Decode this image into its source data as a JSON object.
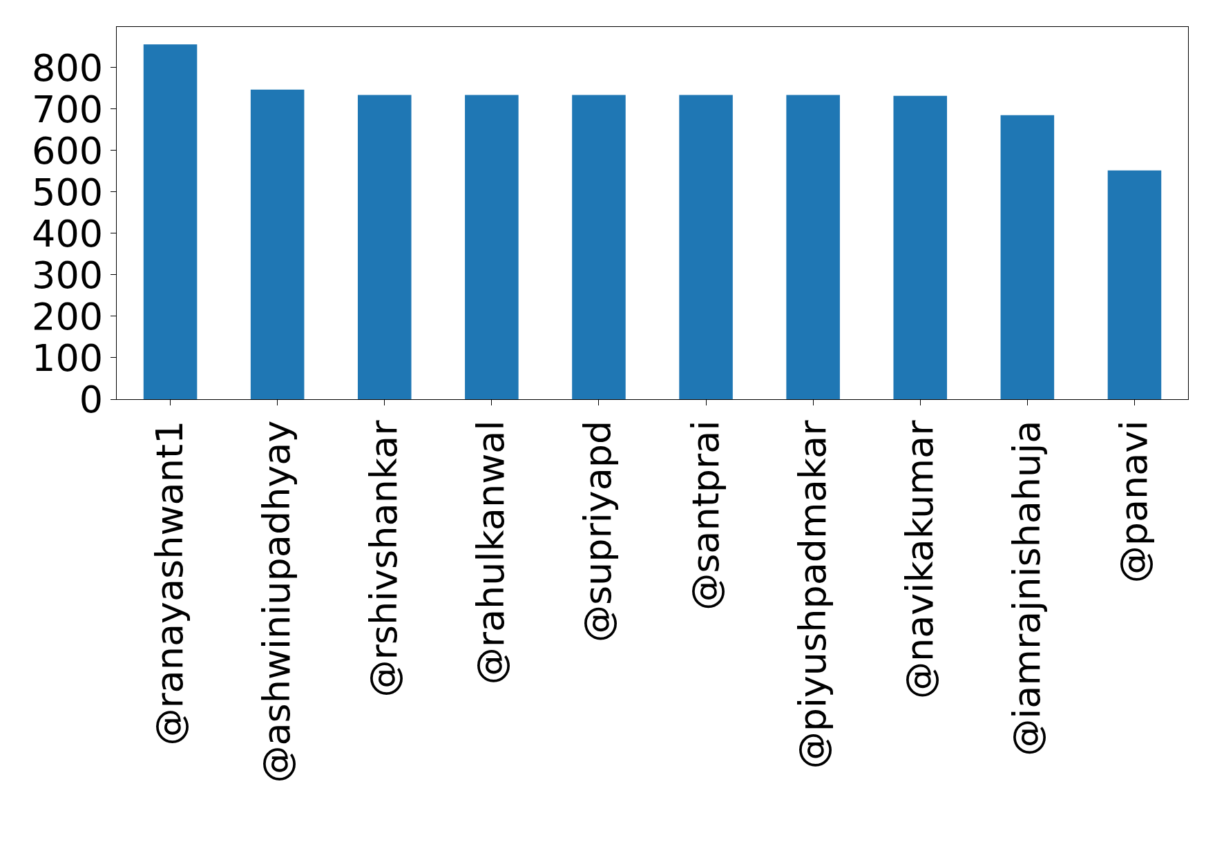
{
  "chart_data": {
    "type": "bar",
    "categories": [
      "@ranayashwant1",
      "@ashwiniupadhyay",
      "@rshivshankar",
      "@rahulkanwal",
      "@supriyapd",
      "@santprai",
      "@piyushpadmakar",
      "@navikakumar",
      "@iamrajnishahuja",
      "@panavi"
    ],
    "values": [
      856,
      747,
      734,
      734,
      734,
      734,
      734,
      732,
      685,
      552
    ],
    "color": "#1f77b4",
    "ylim": [
      0,
      898
    ],
    "yticks": [
      0,
      100,
      200,
      300,
      400,
      500,
      600,
      700,
      800
    ],
    "grid": false
  }
}
